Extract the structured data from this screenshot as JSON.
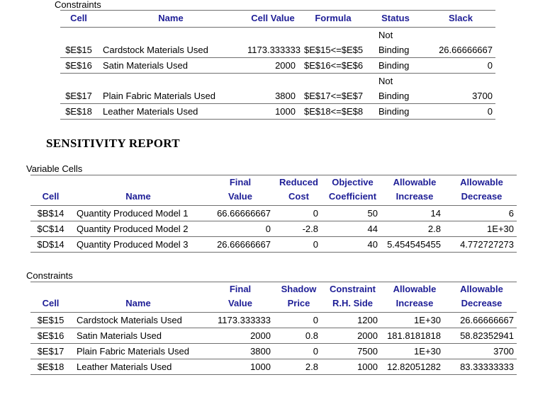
{
  "colors": {
    "header_text_blue": "#1E1E96",
    "grid_line_gray": "#707070",
    "body_text": "#000000",
    "background": "#FFFFFF"
  },
  "sensitivity": {
    "title": "SENSITIVITY REPORT"
  },
  "answer_constraints": {
    "label": "Constraints",
    "columns": [
      "Cell",
      "Name",
      "Cell Value",
      "Formula",
      "Status",
      "Slack"
    ],
    "rows": [
      [
        "$E$15",
        "Cardstock Materials Used",
        "1173.333333",
        "$E$15<=$E$5",
        "Not\nBinding",
        "26.66666667"
      ],
      [
        "$E$16",
        "Satin Materials Used",
        "2000",
        "$E$16<=$E$6",
        "Binding",
        "0"
      ],
      [
        "$E$17",
        "Plain Fabric Materials Used",
        "3800",
        "$E$17<=$E$7",
        "Not\nBinding",
        "3700"
      ],
      [
        "$E$18",
        "Leather Materials Used",
        "1000",
        "$E$18<=$E$8",
        "Binding",
        "0"
      ]
    ]
  },
  "variable_cells": {
    "label": "Variable Cells",
    "columns": [
      "Cell",
      "Name",
      "Final\nValue",
      "Reduced\nCost",
      "Objective\nCoefficient",
      "Allowable\nIncrease",
      "Allowable\nDecrease"
    ],
    "rows": [
      [
        "$B$14",
        "Quantity Produced Model 1",
        "66.66666667",
        "0",
        "50",
        "14",
        "6"
      ],
      [
        "$C$14",
        "Quantity Produced Model 2",
        "0",
        "-2.8",
        "44",
        "2.8",
        "1E+30"
      ],
      [
        "$D$14",
        "Quantity Produced Model 3",
        "26.66666667",
        "0",
        "40",
        "5.454545455",
        "4.772727273"
      ]
    ]
  },
  "sensitivity_constraints": {
    "label": "Constraints",
    "columns": [
      "Cell",
      "Name",
      "Final\nValue",
      "Shadow\nPrice",
      "Constraint\nR.H. Side",
      "Allowable\nIncrease",
      "Allowable\nDecrease"
    ],
    "rows": [
      [
        "$E$15",
        "Cardstock Materials Used",
        "1173.333333",
        "0",
        "1200",
        "1E+30",
        "26.66666667"
      ],
      [
        "$E$16",
        "Satin Materials Used",
        "2000",
        "0.8",
        "2000",
        "181.8181818",
        "58.82352941"
      ],
      [
        "$E$17",
        "Plain Fabric Materials Used",
        "3800",
        "0",
        "7500",
        "1E+30",
        "3700"
      ],
      [
        "$E$18",
        "Leather Materials Used",
        "1000",
        "2.8",
        "1000",
        "12.82051282",
        "83.33333333"
      ]
    ]
  }
}
